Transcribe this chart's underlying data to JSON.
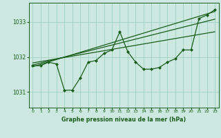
{
  "title": "Graphe pression niveau de la mer (hPa)",
  "bg_color": "#cce8e0",
  "plot_bg_color": "#cce8e0",
  "grid_color": "#99ccbb",
  "line_color": "#1a5c1a",
  "xlim": [
    -0.5,
    23.5
  ],
  "ylim": [
    1030.55,
    1033.55
  ],
  "yticks": [
    1031,
    1032,
    1033
  ],
  "xticks": [
    0,
    1,
    2,
    3,
    4,
    5,
    6,
    7,
    8,
    9,
    10,
    11,
    12,
    13,
    14,
    15,
    16,
    17,
    18,
    19,
    20,
    21,
    22,
    23
  ],
  "hours": [
    0,
    1,
    2,
    3,
    4,
    5,
    6,
    7,
    8,
    9,
    10,
    11,
    12,
    13,
    14,
    15,
    16,
    17,
    18,
    19,
    20,
    21,
    22,
    23
  ],
  "pressure_main": [
    1031.75,
    1031.75,
    1031.85,
    1031.8,
    1031.05,
    1031.05,
    1031.4,
    1031.85,
    1031.9,
    1032.1,
    1032.2,
    1032.72,
    1032.15,
    1031.85,
    1031.65,
    1031.65,
    1031.7,
    1031.85,
    1031.95,
    1032.2,
    1032.2,
    1033.1,
    1033.2,
    1033.35
  ],
  "trend1_x": [
    0,
    23
  ],
  "trend1_y": [
    1031.72,
    1033.3
  ],
  "trend2_x": [
    0,
    23
  ],
  "trend2_y": [
    1031.77,
    1033.08
  ],
  "trend3_x": [
    0,
    23
  ],
  "trend3_y": [
    1031.83,
    1032.72
  ]
}
